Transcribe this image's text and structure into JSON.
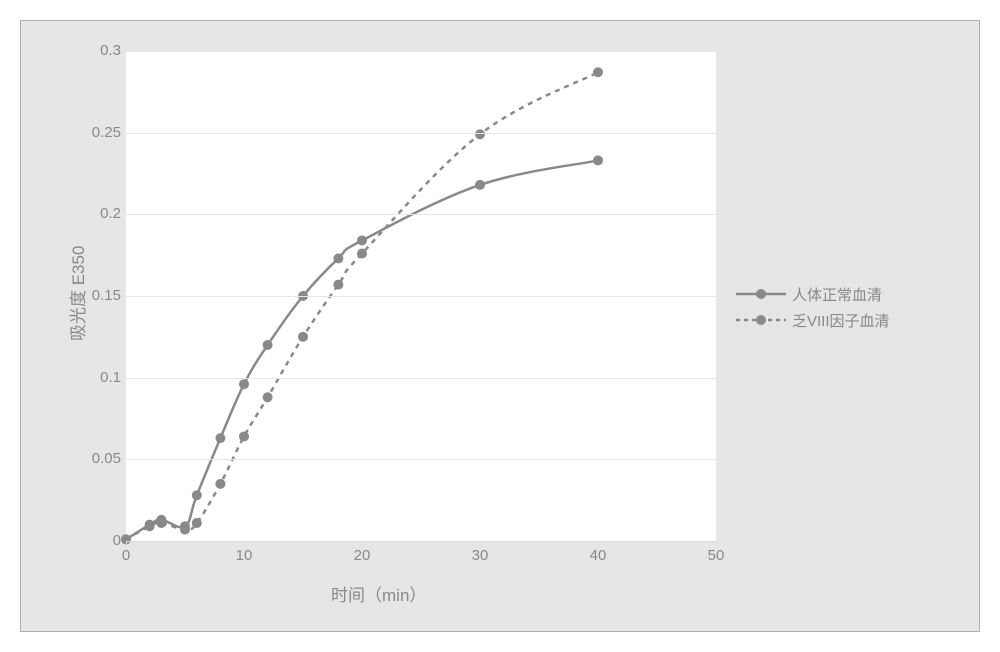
{
  "chart": {
    "type": "line",
    "background_color": "#e6e6e6",
    "plot_background": "#ffffff",
    "grid_color": "#e6e6e6",
    "text_color": "#888888",
    "axis_line_color": "#dcdcdc",
    "label_fontsize": 17,
    "tick_fontsize": 15,
    "ylabel": "吸光度 E350",
    "xlabel": "时间（min）",
    "xlim": [
      0,
      50
    ],
    "ylim": [
      0,
      0.3
    ],
    "xtick_step": 10,
    "ytick_step": 0.05,
    "marker_radius": 5,
    "line_width": 2.5,
    "series": [
      {
        "id": "normal",
        "label": "人体正常血清",
        "color": "#898989",
        "dash": "solid",
        "x": [
          0,
          2,
          3,
          5,
          6,
          8,
          10,
          12,
          15,
          18,
          20,
          30,
          40
        ],
        "y": [
          0.001,
          0.01,
          0.013,
          0.009,
          0.028,
          0.063,
          0.096,
          0.12,
          0.15,
          0.173,
          0.184,
          0.218,
          0.233
        ]
      },
      {
        "id": "deficient",
        "label": "乏VIII因子血清",
        "color": "#898989",
        "dash": "5,5",
        "x": [
          0,
          2,
          3,
          5,
          6,
          8,
          10,
          12,
          15,
          18,
          20,
          30,
          40
        ],
        "y": [
          0.001,
          0.009,
          0.011,
          0.007,
          0.011,
          0.035,
          0.064,
          0.088,
          0.125,
          0.157,
          0.176,
          0.249,
          0.287
        ]
      }
    ]
  },
  "legend": {
    "items": [
      {
        "label": "人体正常血清"
      },
      {
        "label": "乏VIII因子血清"
      }
    ]
  }
}
